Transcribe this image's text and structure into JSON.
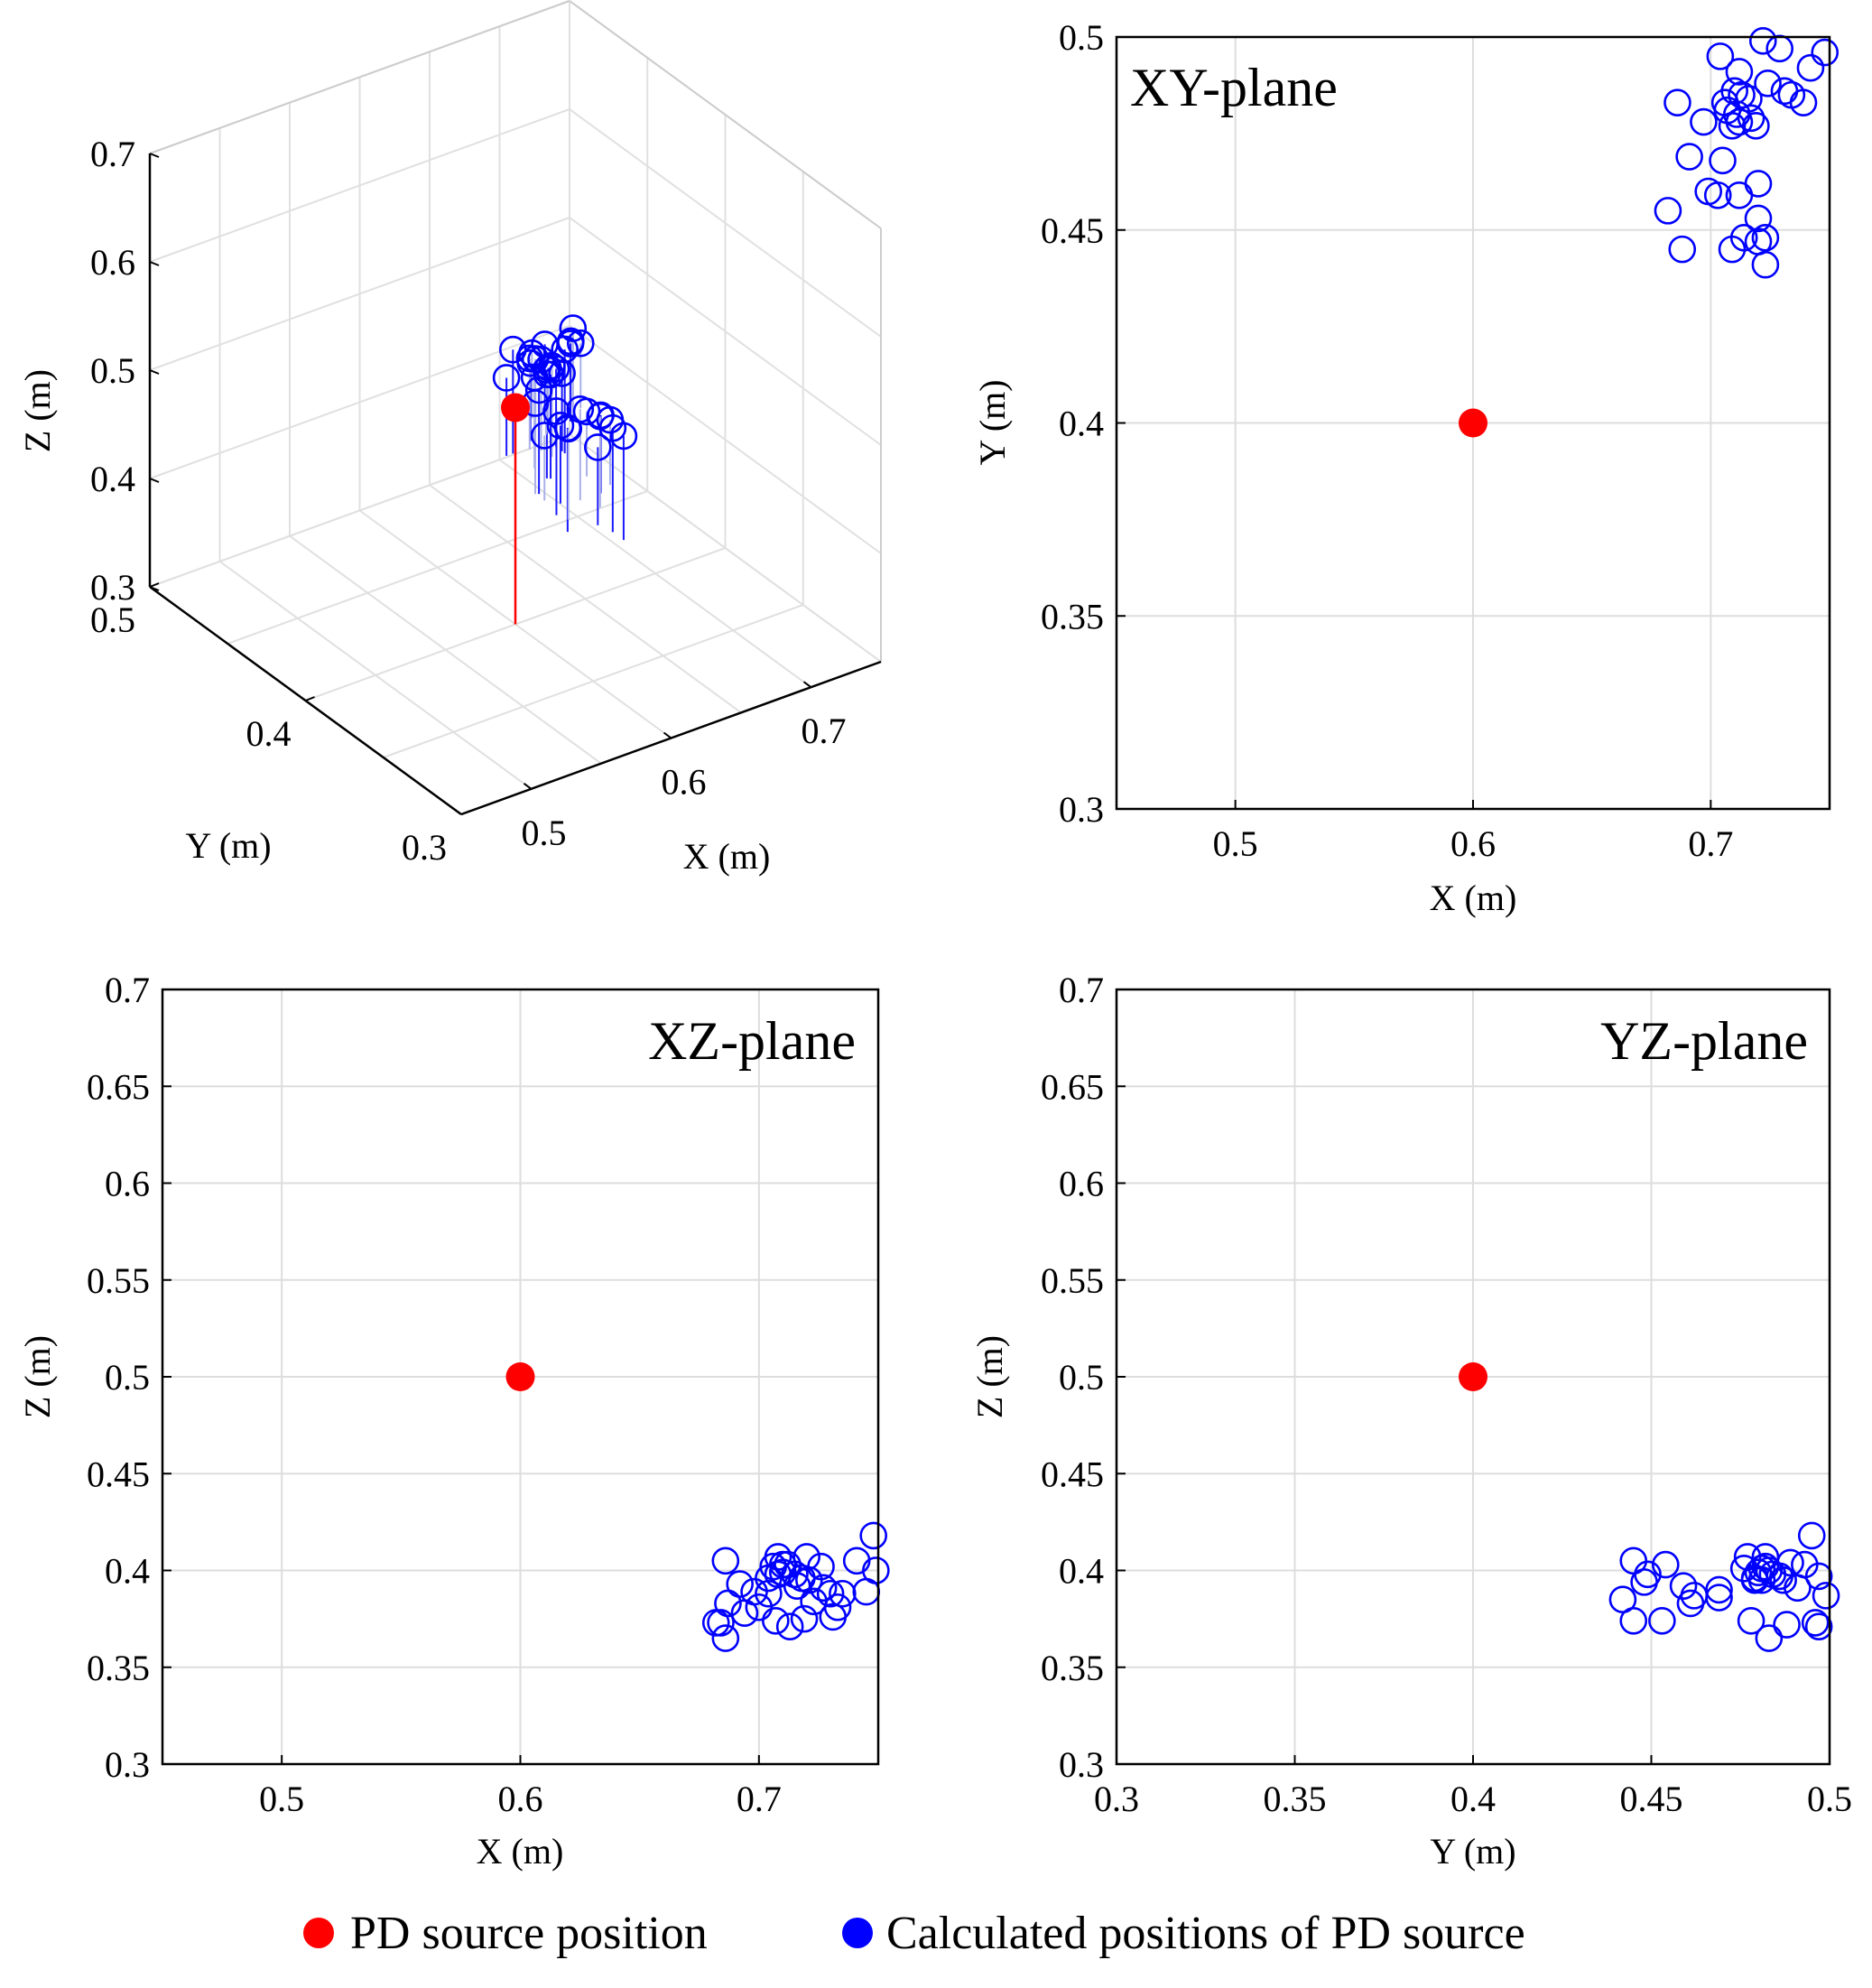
{
  "legend": {
    "source_label": "PD source position",
    "calc_label": "Calculated positions of PD source",
    "source_color": "#ff0000",
    "calc_color": "#0000ff"
  },
  "chart_data": [
    {
      "id": "view3d",
      "type": "scatter",
      "title": "",
      "xlabel": "X (m)",
      "ylabel": "Y (m)",
      "zlabel": "Z (m)",
      "xlim": [
        0.45,
        0.75
      ],
      "ylim": [
        0.3,
        0.5
      ],
      "zlim": [
        0.3,
        0.7
      ],
      "xticks": [
        "0.5",
        "0.6",
        "0.7"
      ],
      "yticks": [
        "0.3",
        "0.4",
        "0.5"
      ],
      "zticks": [
        "0.3",
        "0.4",
        "0.5",
        "0.6",
        "0.7"
      ]
    },
    {
      "id": "xy",
      "type": "scatter",
      "title": "XY-plane",
      "xlabel": "X (m)",
      "ylabel": "Y (m)",
      "xlim": [
        0.45,
        0.75
      ],
      "ylim": [
        0.3,
        0.5
      ],
      "xticks": [
        "0.5",
        "0.6",
        "0.7"
      ],
      "yticks": [
        "0.3",
        "0.35",
        "0.4",
        "0.45",
        "0.5"
      ],
      "source": {
        "x": 0.6,
        "y": 0.4
      },
      "calculated": {
        "x": [
          0.704,
          0.712,
          0.722,
          0.729,
          0.734,
          0.748,
          0.742,
          0.739,
          0.731,
          0.724,
          0.716,
          0.709,
          0.697,
          0.686,
          0.691,
          0.705,
          0.712,
          0.72,
          0.703,
          0.699,
          0.714,
          0.72,
          0.682,
          0.72,
          0.723,
          0.723,
          0.709,
          0.712,
          0.688,
          0.706,
          0.707,
          0.713,
          0.717,
          0.71,
          0.711,
          0.719
        ],
        "y": [
          0.495,
          0.491,
          0.499,
          0.497,
          0.485,
          0.496,
          0.492,
          0.483,
          0.486,
          0.488,
          0.484,
          0.477,
          0.478,
          0.483,
          0.469,
          0.468,
          0.459,
          0.462,
          0.459,
          0.46,
          0.448,
          0.453,
          0.455,
          0.447,
          0.448,
          0.441,
          0.445,
          0.478,
          0.445,
          0.483,
          0.481,
          0.485,
          0.479,
          0.486,
          0.48,
          0.477
        ]
      }
    },
    {
      "id": "xz",
      "type": "scatter",
      "title": "XZ-plane",
      "xlabel": "X (m)",
      "ylabel": "Z (m)",
      "xlim": [
        0.45,
        0.75
      ],
      "ylim": [
        0.3,
        0.7
      ],
      "xticks": [
        "0.5",
        "0.6",
        "0.7"
      ],
      "yticks": [
        "0.3",
        "0.35",
        "0.4",
        "0.45",
        "0.5",
        "0.55",
        "0.6",
        "0.65",
        "0.7"
      ],
      "source": {
        "x": 0.6,
        "y": 0.5
      },
      "calculated": {
        "x": [
          0.686,
          0.692,
          0.698,
          0.704,
          0.708,
          0.71,
          0.715,
          0.72,
          0.726,
          0.73,
          0.735,
          0.741,
          0.748,
          0.749,
          0.745,
          0.731,
          0.723,
          0.719,
          0.713,
          0.707,
          0.704,
          0.7,
          0.694,
          0.687,
          0.684,
          0.682,
          0.686,
          0.718,
          0.716,
          0.727,
          0.733,
          0.706,
          0.708,
          0.712,
          0.71,
          0.721
        ],
        "z": [
          0.405,
          0.393,
          0.389,
          0.396,
          0.407,
          0.403,
          0.398,
          0.407,
          0.402,
          0.388,
          0.388,
          0.405,
          0.418,
          0.4,
          0.389,
          0.376,
          0.384,
          0.375,
          0.371,
          0.374,
          0.388,
          0.381,
          0.378,
          0.383,
          0.373,
          0.373,
          0.365,
          0.396,
          0.392,
          0.391,
          0.381,
          0.402,
          0.398,
          0.403,
          0.399,
          0.395
        ]
      }
    },
    {
      "id": "yz",
      "type": "scatter",
      "title": "YZ-plane",
      "xlabel": "Y (m)",
      "ylabel": "Z (m)",
      "xlim": [
        0.3,
        0.5
      ],
      "ylim": [
        0.3,
        0.7
      ],
      "xticks": [
        "0.3",
        "0.35",
        "0.4",
        "0.45",
        "0.5"
      ],
      "yticks": [
        "0.3",
        "0.35",
        "0.4",
        "0.45",
        "0.5",
        "0.55",
        "0.6",
        "0.65",
        "0.7"
      ],
      "source": {
        "x": 0.4,
        "y": 0.5
      },
      "calculated": {
        "y": [
          0.445,
          0.449,
          0.454,
          0.448,
          0.442,
          0.445,
          0.453,
          0.459,
          0.461,
          0.462,
          0.469,
          0.469,
          0.477,
          0.479,
          0.481,
          0.482,
          0.478,
          0.483,
          0.488,
          0.489,
          0.491,
          0.495,
          0.497,
          0.496,
          0.499,
          0.497,
          0.493,
          0.486,
          0.482,
          0.476,
          0.48,
          0.484,
          0.487,
          0.483,
          0.479,
          0.481
        ],
        "z": [
          0.405,
          0.398,
          0.403,
          0.394,
          0.385,
          0.374,
          0.374,
          0.392,
          0.383,
          0.387,
          0.39,
          0.386,
          0.407,
          0.395,
          0.395,
          0.407,
          0.374,
          0.365,
          0.372,
          0.404,
          0.391,
          0.418,
          0.397,
          0.373,
          0.387,
          0.371,
          0.403,
          0.397,
          0.402,
          0.401,
          0.399,
          0.398,
          0.395,
          0.4,
          0.396,
          0.401
        ]
      }
    }
  ]
}
